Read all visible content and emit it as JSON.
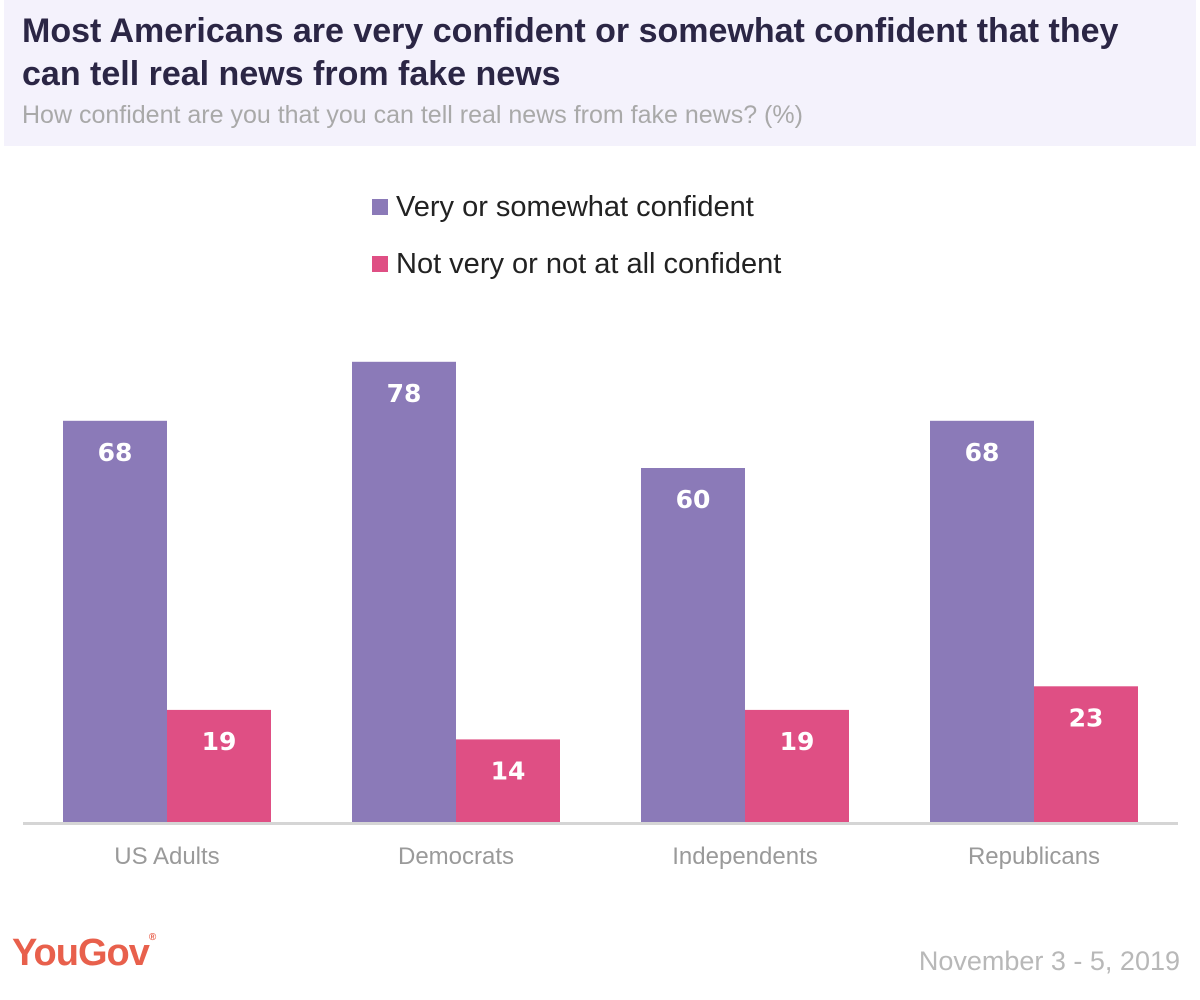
{
  "header": {
    "title": "Most Americans are very confident or somewhat confident that they can tell real news from fake news",
    "subtitle": "How confident are you that you can tell real news from fake news? (%)"
  },
  "chart_data": {
    "type": "bar",
    "categories": [
      "US Adults",
      "Democrats",
      "Independents",
      "Republicans"
    ],
    "series": [
      {
        "name": "Very or somewhat confident",
        "color": "#8b7ab8",
        "values": [
          68,
          78,
          60,
          68
        ]
      },
      {
        "name": "Not very or not at all confident",
        "color": "#df4f84",
        "values": [
          19,
          14,
          19,
          23
        ]
      }
    ],
    "legend_placement": "top-center",
    "grid": false,
    "ylim": [
      0,
      80
    ]
  },
  "footer": {
    "logo_text": "YouGov",
    "logo_mark": "®",
    "date": "November 3 - 5, 2019"
  }
}
